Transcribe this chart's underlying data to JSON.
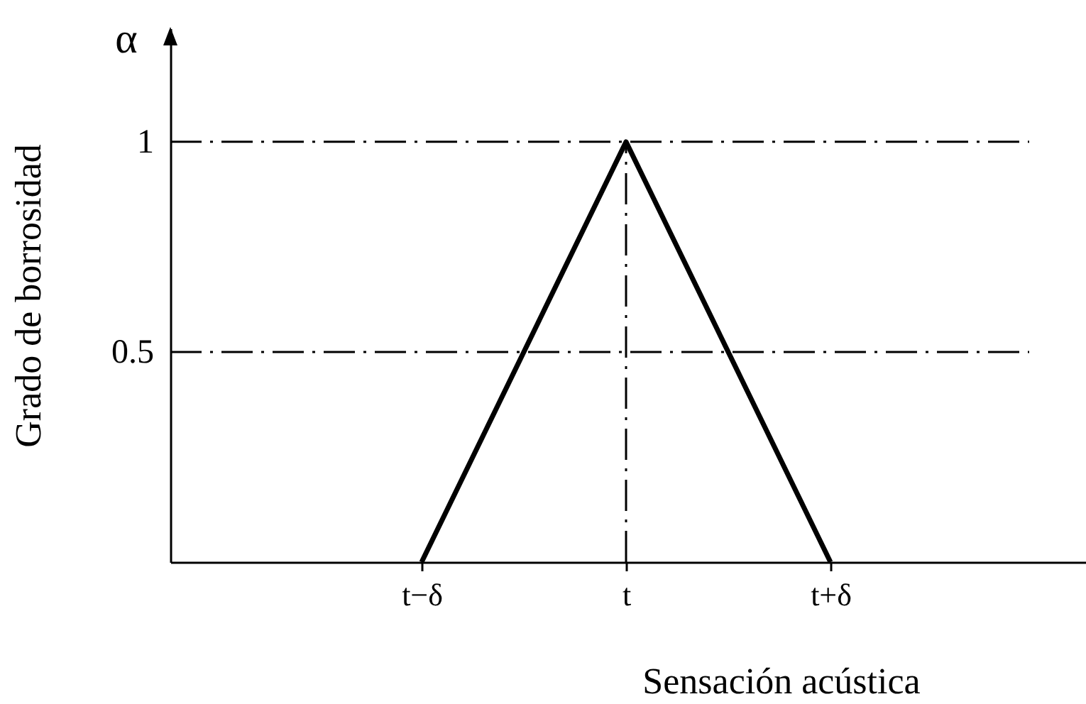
{
  "chart_data": {
    "type": "line",
    "xlabel": "Sensación acústica",
    "ylabel": "Grado de borrosidad",
    "annotations": [
      "α"
    ],
    "categories": [
      "t−δ",
      "t",
      "t+δ"
    ],
    "series": [
      {
        "color": "#000000",
        "values": [
          0,
          1,
          0
        ]
      }
    ],
    "ylim": [
      0,
      1.27
    ],
    "yticks": [
      0.5,
      1
    ],
    "ref_lines": [
      {
        "axis": "y",
        "value": 1,
        "color": "#000000",
        "line_style": "dashdot"
      },
      {
        "axis": "y",
        "value": 0.5,
        "color": "#000000",
        "line_style": "dashdot"
      },
      {
        "axis": "x",
        "value": "t",
        "color": "#000000",
        "line_style": "dashdot"
      }
    ]
  }
}
